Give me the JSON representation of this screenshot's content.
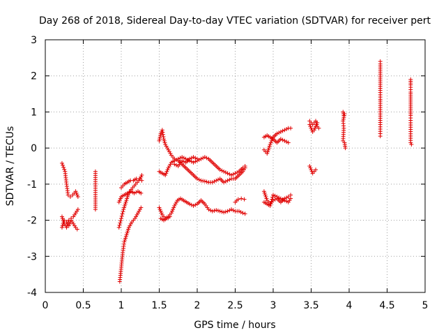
{
  "chart_data": {
    "type": "scatter",
    "title": "Day 268 of 2018, Sidereal Day-to-day VTEC variation (SDTVAR) for receiver pert",
    "xlabel": "GPS time / hours",
    "ylabel": "SDTVAR / TECUs",
    "xlim": [
      0,
      5
    ],
    "ylim": [
      -4,
      3
    ],
    "xticks": [
      0,
      0.5,
      1,
      1.5,
      2,
      2.5,
      3,
      3.5,
      4,
      4.5,
      5
    ],
    "yticks": [
      -4,
      -3,
      -2,
      -1,
      0,
      1,
      2,
      3
    ],
    "xtick_labels": [
      "0",
      "0.5",
      "1",
      "1.5",
      "2",
      "2.5",
      "3",
      "3.5",
      "4",
      "4.5",
      "5"
    ],
    "ytick_labels": [
      "-4",
      "-3",
      "-2",
      "-1",
      "0",
      "1",
      "2",
      "3"
    ],
    "grid": true,
    "marker": "+",
    "color": "#e00000",
    "segments": [
      [
        0.22,
        -0.42,
        0.26,
        -0.65,
        0.28,
        -1.0,
        0.3,
        -1.3,
        0.33,
        -1.35,
        0.36,
        -1.3,
        0.4,
        -1.2,
        0.43,
        -1.35
      ],
      [
        0.22,
        -2.2,
        0.25,
        -2.0,
        0.28,
        -2.05,
        0.31,
        -2.15,
        0.34,
        -2.0,
        0.37,
        -2.1,
        0.4,
        -2.2,
        0.42,
        -2.25
      ],
      [
        0.22,
        -1.9,
        0.25,
        -2.1,
        0.28,
        -2.2,
        0.31,
        -2.0,
        0.34,
        -1.95,
        0.37,
        -1.9,
        0.4,
        -1.8,
        0.43,
        -1.7
      ],
      [
        0.66,
        -0.65,
        0.66,
        -1.05,
        0.66,
        -1.35,
        0.66,
        -1.7
      ],
      [
        0.98,
        -3.7,
        1.0,
        -3.3,
        1.02,
        -2.9,
        1.04,
        -2.6,
        1.07,
        -2.4,
        1.1,
        -2.2,
        1.14,
        -2.05,
        1.18,
        -1.95,
        1.22,
        -1.8,
        1.26,
        -1.65
      ],
      [
        0.97,
        -2.2,
        1.0,
        -1.95,
        1.03,
        -1.7,
        1.06,
        -1.5,
        1.09,
        -1.3,
        1.13,
        -1.15,
        1.17,
        -1.05,
        1.21,
        -0.95,
        1.25,
        -0.85,
        1.27,
        -0.75
      ],
      [
        0.97,
        -1.5,
        1.0,
        -1.35,
        1.04,
        -1.3,
        1.08,
        -1.25,
        1.13,
        -1.2,
        1.17,
        -1.25,
        1.22,
        -1.2,
        1.26,
        -1.25
      ],
      [
        1.0,
        -1.1,
        1.04,
        -1.0,
        1.08,
        -0.95,
        1.12,
        -0.9,
        1.16,
        -0.9,
        1.2,
        -0.85,
        1.24,
        -0.85,
        1.27,
        -0.9
      ],
      [
        1.5,
        0.2,
        1.52,
        0.4,
        1.54,
        0.5,
        1.56,
        0.25,
        1.58,
        0.1,
        1.62,
        -0.05,
        1.66,
        -0.2,
        1.7,
        -0.3,
        1.75,
        -0.35,
        1.8,
        -0.45,
        1.85,
        -0.55,
        1.9,
        -0.65,
        1.95,
        -0.75,
        2.0,
        -0.85,
        2.05,
        -0.9,
        2.1,
        -0.92,
        2.15,
        -0.95,
        2.2,
        -0.95,
        2.25,
        -0.9,
        2.3,
        -0.85,
        2.35,
        -0.95,
        2.4,
        -0.9,
        2.45,
        -0.85,
        2.5,
        -0.85,
        2.55,
        -0.75,
        2.6,
        -0.65,
        2.63,
        -0.55
      ],
      [
        1.5,
        -0.65,
        1.54,
        -0.7,
        1.58,
        -0.75,
        1.62,
        -0.55,
        1.66,
        -0.4,
        1.7,
        -0.35,
        1.75,
        -0.3,
        1.8,
        -0.25,
        1.85,
        -0.3,
        1.9,
        -0.35,
        1.95,
        -0.4,
        2.0,
        -0.35,
        2.05,
        -0.3,
        2.1,
        -0.25,
        2.15,
        -0.3,
        2.2,
        -0.4,
        2.25,
        -0.5,
        2.3,
        -0.6,
        2.35,
        -0.65,
        2.4,
        -0.7,
        2.45,
        -0.75,
        2.5,
        -0.7,
        2.55,
        -0.65,
        2.6,
        -0.55,
        2.63,
        -0.5
      ],
      [
        1.7,
        -0.45,
        1.75,
        -0.5,
        1.8,
        -0.35,
        1.85,
        -0.4,
        1.9,
        -0.3,
        1.95,
        -0.25,
        2.0,
        -0.3
      ],
      [
        1.5,
        -1.65,
        1.54,
        -1.85,
        1.58,
        -1.95,
        1.62,
        -1.9,
        1.66,
        -1.8,
        1.7,
        -1.6,
        1.74,
        -1.45,
        1.78,
        -1.4,
        1.82,
        -1.45,
        1.86,
        -1.5,
        1.9,
        -1.55,
        1.95,
        -1.6,
        2.0,
        -1.55,
        2.05,
        -1.45,
        2.1,
        -1.55,
        2.15,
        -1.7,
        2.2,
        -1.75,
        2.25,
        -1.72,
        2.3,
        -1.75,
        2.35,
        -1.78,
        2.4,
        -1.75,
        2.45,
        -1.7,
        2.5,
        -1.75,
        2.55,
        -1.75,
        2.6,
        -1.8,
        2.63,
        -1.82
      ],
      [
        1.52,
        -1.95,
        1.56,
        -2.0,
        1.6,
        -1.95,
        1.64,
        -1.9
      ],
      [
        2.5,
        -1.5,
        2.54,
        -1.42,
        2.58,
        -1.4,
        2.62,
        -1.42
      ],
      [
        2.88,
        -0.05,
        2.92,
        -0.15,
        2.96,
        0.1,
        3.0,
        0.3,
        3.05,
        0.4,
        3.1,
        0.45,
        3.15,
        0.5,
        3.2,
        0.55,
        3.23,
        0.55
      ],
      [
        2.88,
        0.3,
        2.92,
        0.35,
        2.96,
        0.3,
        3.0,
        0.25,
        3.05,
        0.15,
        3.1,
        0.25,
        3.15,
        0.2,
        3.2,
        0.15
      ],
      [
        2.88,
        -1.2,
        2.92,
        -1.45,
        2.96,
        -1.55,
        3.0,
        -1.45,
        3.05,
        -1.4,
        3.1,
        -1.5,
        3.15,
        -1.4,
        3.2,
        -1.35,
        3.23,
        -1.3
      ],
      [
        2.88,
        -1.5,
        2.92,
        -1.55,
        2.96,
        -1.6,
        3.0,
        -1.3,
        3.05,
        -1.35,
        3.1,
        -1.4,
        3.15,
        -1.45,
        3.2,
        -1.5,
        3.23,
        -1.4
      ],
      [
        3.48,
        0.75,
        3.5,
        0.7,
        3.52,
        0.65,
        3.54,
        0.7,
        3.56,
        0.75,
        3.58,
        0.6,
        3.6,
        0.55
      ],
      [
        3.48,
        0.65,
        3.5,
        0.55,
        3.52,
        0.45,
        3.54,
        0.5,
        3.56,
        0.6,
        3.58,
        0.7
      ],
      [
        3.48,
        -0.5,
        3.5,
        -0.6,
        3.52,
        -0.7,
        3.54,
        -0.65,
        3.56,
        -0.6
      ],
      [
        3.92,
        1.0,
        3.93,
        0.9,
        3.94,
        0.95,
        3.92,
        0.75,
        3.93,
        0.55,
        3.92,
        0.2,
        3.94,
        0.15,
        3.95,
        0.0
      ],
      [
        4.41,
        2.4,
        4.41,
        2.33,
        4.41,
        1.6,
        4.41,
        1.35,
        4.41,
        1.3,
        4.41,
        0.65,
        4.41,
        0.4,
        4.41,
        0.33
      ],
      [
        4.81,
        1.9,
        4.81,
        1.75,
        4.81,
        1.55,
        4.81,
        1.5,
        4.81,
        1.0,
        4.81,
        0.9,
        4.81,
        0.7,
        4.81,
        0.15,
        4.82,
        0.1
      ]
    ]
  }
}
